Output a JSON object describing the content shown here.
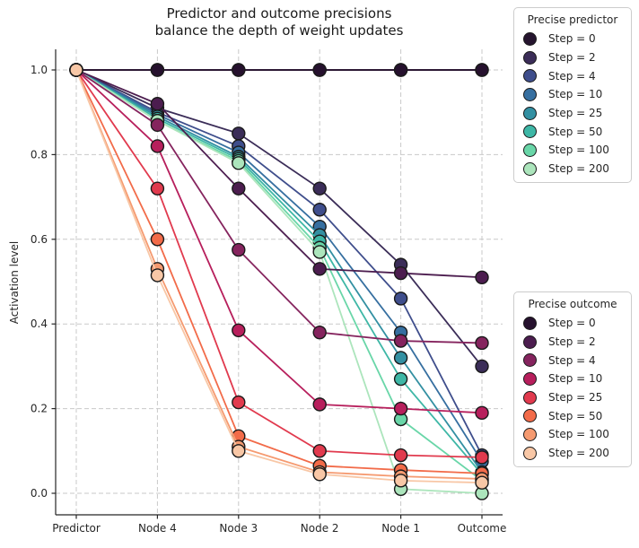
{
  "figure": {
    "title_line1": "Predictor and outcome precisions",
    "title_line2": "balance the depth of weight updates",
    "ylabel": "Activation level"
  },
  "chart_data": {
    "type": "line",
    "title": "Predictor and outcome precisions balance the depth of weight updates",
    "xlabel": "",
    "ylabel": "Activation level",
    "categories": [
      "Predictor",
      "Node 4",
      "Node 3",
      "Node 2",
      "Node 1",
      "Outcome"
    ],
    "yticks": [
      0.0,
      0.2,
      0.4,
      0.6,
      0.8,
      1.0
    ],
    "ytick_labels": [
      "0.0",
      "0.2",
      "0.4",
      "0.6",
      "0.8",
      "1.0"
    ],
    "ylim": [
      -0.05,
      1.05
    ],
    "grid": "dashed gray, horizontal at each ytick and vertical at each category",
    "grid_color": "#c9c9c9",
    "marker": "circle, black edge",
    "legend_position": "two boxes outside right",
    "series_groups": [
      {
        "name": "Precise predictor",
        "series": [
          {
            "name": "Step = 0",
            "color": "#26152f",
            "values": [
              1.0,
              1.0,
              1.0,
              1.0,
              1.0,
              1.0
            ]
          },
          {
            "name": "Step = 2",
            "color": "#3b2d58",
            "values": [
              1.0,
              0.91,
              0.85,
              0.72,
              0.54,
              0.3
            ]
          },
          {
            "name": "Step = 4",
            "color": "#3f4e8c",
            "values": [
              1.0,
              0.9,
              0.82,
              0.67,
              0.46,
              0.09
            ]
          },
          {
            "name": "Step = 10",
            "color": "#366fa0",
            "values": [
              1.0,
              0.895,
              0.805,
              0.63,
              0.38,
              0.075
            ]
          },
          {
            "name": "Step = 25",
            "color": "#3390a2",
            "values": [
              1.0,
              0.89,
              0.795,
              0.61,
              0.32,
              0.05
            ]
          },
          {
            "name": "Step = 50",
            "color": "#3eb7a6",
            "values": [
              1.0,
              0.885,
              0.79,
              0.595,
              0.27,
              0.045
            ]
          },
          {
            "name": "Step = 100",
            "color": "#69d6a8",
            "values": [
              1.0,
              0.88,
              0.785,
              0.58,
              0.175,
              0.03
            ]
          },
          {
            "name": "Step = 200",
            "color": "#ace5bc",
            "values": [
              1.0,
              0.88,
              0.78,
              0.57,
              0.01,
              0.0
            ]
          }
        ]
      },
      {
        "name": "Precise outcome",
        "series": [
          {
            "name": "Step = 0",
            "color": "#26112e",
            "values": [
              1.0,
              1.0,
              1.0,
              1.0,
              1.0,
              1.0
            ]
          },
          {
            "name": "Step = 2",
            "color": "#4c1d4f",
            "values": [
              1.0,
              0.92,
              0.72,
              0.53,
              0.52,
              0.51
            ]
          },
          {
            "name": "Step = 4",
            "color": "#85245e",
            "values": [
              1.0,
              0.87,
              0.575,
              0.38,
              0.36,
              0.355
            ]
          },
          {
            "name": "Step = 10",
            "color": "#b71f5c",
            "values": [
              1.0,
              0.82,
              0.385,
              0.21,
              0.2,
              0.19
            ]
          },
          {
            "name": "Step = 25",
            "color": "#e13a4e",
            "values": [
              1.0,
              0.72,
              0.215,
              0.1,
              0.09,
              0.085
            ]
          },
          {
            "name": "Step = 50",
            "color": "#f26b49",
            "values": [
              1.0,
              0.6,
              0.135,
              0.065,
              0.055,
              0.047
            ]
          },
          {
            "name": "Step = 100",
            "color": "#f59a70",
            "values": [
              1.0,
              0.53,
              0.11,
              0.05,
              0.04,
              0.034
            ]
          },
          {
            "name": "Step = 200",
            "color": "#f8c7a6",
            "values": [
              1.0,
              0.515,
              0.1,
              0.045,
              0.03,
              0.025
            ]
          }
        ]
      }
    ]
  }
}
